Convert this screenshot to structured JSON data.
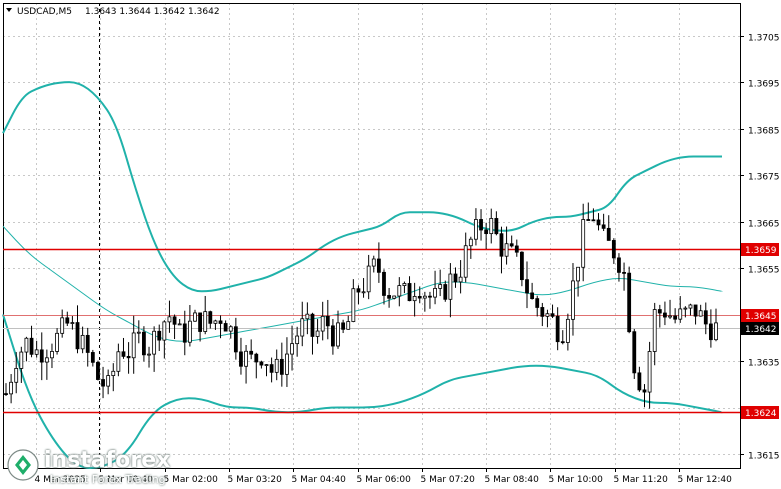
{
  "header": {
    "symbol": "USDCAD,M5",
    "ohlc": "1.3643 1.3644 1.3642 1.3642"
  },
  "colors": {
    "background": "#ffffff",
    "grid": "#c8c8c8",
    "candle": "#000000",
    "bollinger": "#20b2aa",
    "level_line": "#e00000",
    "current_price_line": "#c0c0c0",
    "axis_text": "#000000",
    "label_red": "#e00000",
    "label_dark": "#000000"
  },
  "chart_data": {
    "type": "candlestick",
    "title": "USDCAD,M5",
    "ylim": [
      1.3612,
      1.3712
    ],
    "y_ticks": [
      "1.3705",
      "1.3695",
      "1.3685",
      "1.3675",
      "1.3665",
      "1.3655",
      "1.3645",
      "1.3635",
      "1.3625",
      "1.3615"
    ],
    "x_ticks": [
      "4 Mar 2025",
      "5 Mar 00:40",
      "5 Mar 02:00",
      "5 Mar 03:20",
      "5 Mar 04:40",
      "5 Mar 06:00",
      "5 Mar 07:20",
      "5 Mar 08:40",
      "5 Mar 10:00",
      "5 Mar 11:20",
      "5 Mar 12:40"
    ],
    "levels": [
      {
        "label": "1.3659",
        "value": 1.3659,
        "style": "red-box"
      },
      {
        "label": "1.3645",
        "value": 1.3645,
        "style": "red-box-thin"
      },
      {
        "label": "1.3642",
        "value": 1.3642,
        "style": "dark-box"
      },
      {
        "label": "1.3624",
        "value": 1.3624,
        "style": "red-box"
      }
    ],
    "price_anchors": [
      1.3628,
      1.3636,
      1.3639,
      1.3637,
      1.3638,
      1.364,
      1.3643,
      1.364,
      1.3636,
      1.3631,
      1.3629,
      1.3638,
      1.3637,
      1.364,
      1.3638,
      1.3643,
      1.3645,
      1.364,
      1.3643,
      1.3644,
      1.3643,
      1.3645,
      1.3641,
      1.3636,
      1.3635,
      1.3637,
      1.3632,
      1.3635,
      1.364,
      1.3643,
      1.364,
      1.3644,
      1.364,
      1.3641,
      1.365,
      1.3652,
      1.3656,
      1.365,
      1.365,
      1.3649,
      1.3652,
      1.3649,
      1.3648,
      1.3652,
      1.3654,
      1.366,
      1.3664,
      1.3665,
      1.366,
      1.3658,
      1.3655,
      1.3648,
      1.3646,
      1.3644,
      1.3641,
      1.365,
      1.3662,
      1.3667,
      1.3661,
      1.3659,
      1.3655,
      1.3635,
      1.3628,
      1.3645,
      1.3646,
      1.3644,
      1.3645,
      1.3646,
      1.3643,
      1.3642
    ],
    "bollinger_upper": [
      1.3684,
      1.3692,
      1.3694,
      1.3695,
      1.3695,
      1.3692,
      1.3686,
      1.3672,
      1.366,
      1.3653,
      1.365,
      1.365,
      1.3651,
      1.3652,
      1.3653,
      1.3655,
      1.3657,
      1.366,
      1.3662,
      1.3663,
      1.3664,
      1.3667,
      1.3667,
      1.3667,
      1.3666,
      1.3664,
      1.3663,
      1.3663,
      1.3665,
      1.3666,
      1.3666,
      1.3667,
      1.3668,
      1.3674,
      1.3676,
      1.3678,
      1.3679,
      1.3679,
      1.3679
    ],
    "bollinger_middle": [
      1.3664,
      1.3658,
      1.3654,
      1.365,
      1.3646,
      1.3643,
      1.364,
      1.3639,
      1.364,
      1.3641,
      1.3642,
      1.3643,
      1.3644,
      1.3645,
      1.3646,
      1.3648,
      1.365,
      1.3652,
      1.3652,
      1.3651,
      1.365,
      1.3649,
      1.365,
      1.3652,
      1.3653,
      1.3652,
      1.3651,
      1.3651,
      1.365
    ],
    "bollinger_lower": [
      1.3645,
      1.3628,
      1.3618,
      1.3612,
      1.3612,
      1.3615,
      1.3624,
      1.3627,
      1.3627,
      1.3625,
      1.3625,
      1.3624,
      1.3624,
      1.3625,
      1.3625,
      1.3625,
      1.3626,
      1.3628,
      1.3631,
      1.3632,
      1.3633,
      1.3634,
      1.3634,
      1.3633,
      1.3632,
      1.3628,
      1.3626,
      1.3626,
      1.3625,
      1.3624
    ]
  },
  "logo": {
    "brand": "instaforex",
    "tagline": "Instant Forex Trading"
  }
}
